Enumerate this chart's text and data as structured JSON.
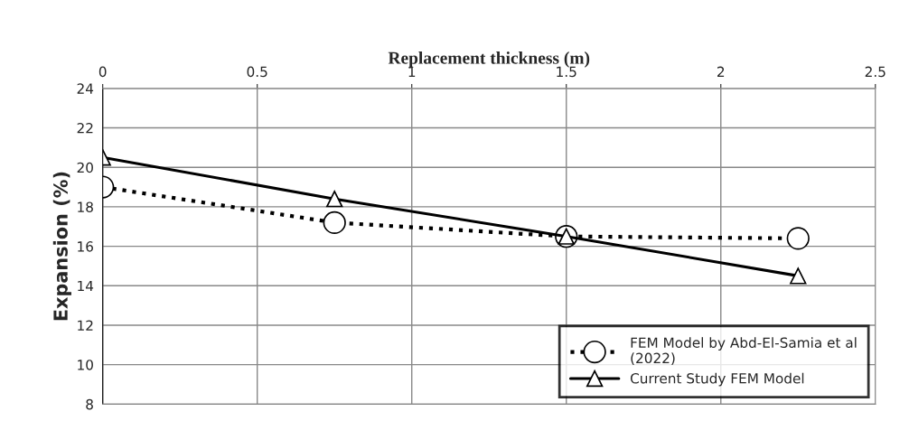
{
  "chart_data": {
    "type": "line",
    "xlabel": "Replacement thickness (m)",
    "ylabel": "Expansion (%)",
    "x": [
      0,
      0.75,
      1.5,
      2.25
    ],
    "series": [
      {
        "name": "FEM Model by Abd-El-Samia et al\n(2022)",
        "color": "#000000",
        "values": [
          19.0,
          17.2,
          16.5,
          16.4
        ],
        "marker": "circle",
        "line_style": "dotted"
      },
      {
        "name": "Current Study FEM Model",
        "color": "#000000",
        "values": [
          20.5,
          18.4,
          16.5,
          14.5
        ],
        "marker": "triangle",
        "line_style": "solid"
      }
    ],
    "xlim": [
      0,
      2.5
    ],
    "xticks": [
      0,
      0.5,
      1,
      1.5,
      2,
      2.5
    ],
    "ylim": [
      8,
      24
    ],
    "yticks": [
      8,
      10,
      12,
      14,
      16,
      18,
      20,
      22,
      24
    ],
    "grid": true,
    "legend": "bottom right"
  }
}
